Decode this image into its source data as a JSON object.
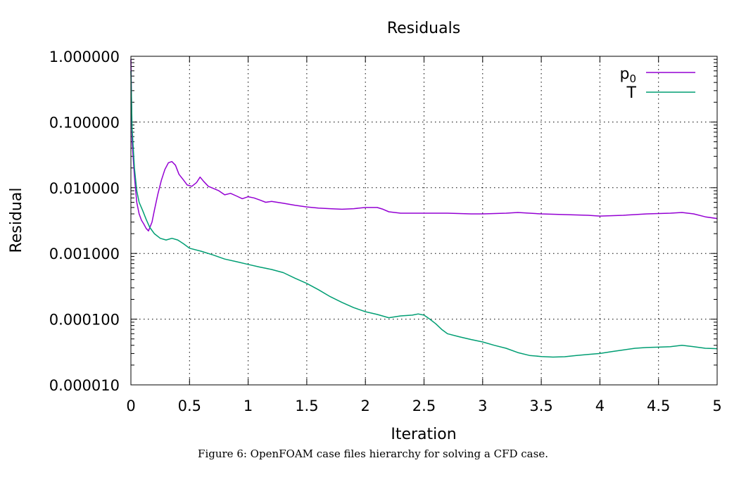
{
  "figure": {
    "caption": "Figure 6: OpenFOAM case files hierarchy for solving a CFD case."
  },
  "chart_data": {
    "type": "line",
    "title": "Residuals",
    "xlabel": "Iteration",
    "ylabel": "Residual",
    "xlim": [
      0,
      5
    ],
    "ylim": [
      1e-05,
      1
    ],
    "yscale": "log",
    "grid": true,
    "legend_position": "top-right",
    "x_ticks": [
      "0",
      "0.5",
      "1",
      "1.5",
      "2",
      "2.5",
      "3",
      "3.5",
      "4",
      "4.5",
      "5"
    ],
    "y_ticks": [
      "1.000000",
      "0.100000",
      "0.010000",
      "0.001000",
      "0.000100",
      "0.000010"
    ],
    "series": [
      {
        "name": "p",
        "name_subscript": "0",
        "color": "#9400d3",
        "points": [
          [
            0,
            0.9
          ],
          [
            0.01,
            0.05
          ],
          [
            0.03,
            0.015
          ],
          [
            0.05,
            0.006
          ],
          [
            0.07,
            0.004
          ],
          [
            0.09,
            0.0032
          ],
          [
            0.11,
            0.0028
          ],
          [
            0.13,
            0.0024
          ],
          [
            0.15,
            0.0022
          ],
          [
            0.18,
            0.003
          ],
          [
            0.2,
            0.0045
          ],
          [
            0.23,
            0.008
          ],
          [
            0.26,
            0.013
          ],
          [
            0.29,
            0.019
          ],
          [
            0.32,
            0.024
          ],
          [
            0.35,
            0.025
          ],
          [
            0.38,
            0.022
          ],
          [
            0.41,
            0.016
          ],
          [
            0.45,
            0.013
          ],
          [
            0.48,
            0.011
          ],
          [
            0.52,
            0.0105
          ],
          [
            0.56,
            0.012
          ],
          [
            0.59,
            0.0145
          ],
          [
            0.62,
            0.0125
          ],
          [
            0.66,
            0.0105
          ],
          [
            0.7,
            0.0098
          ],
          [
            0.75,
            0.009
          ],
          [
            0.8,
            0.0078
          ],
          [
            0.85,
            0.0082
          ],
          [
            0.9,
            0.0075
          ],
          [
            0.95,
            0.0068
          ],
          [
            1.0,
            0.0073
          ],
          [
            1.05,
            0.007
          ],
          [
            1.1,
            0.0065
          ],
          [
            1.15,
            0.006
          ],
          [
            1.2,
            0.0062
          ],
          [
            1.3,
            0.0058
          ],
          [
            1.4,
            0.0054
          ],
          [
            1.5,
            0.0051
          ],
          [
            1.6,
            0.0049
          ],
          [
            1.7,
            0.0048
          ],
          [
            1.8,
            0.0047
          ],
          [
            1.9,
            0.0048
          ],
          [
            2.0,
            0.005
          ],
          [
            2.1,
            0.005
          ],
          [
            2.15,
            0.0047
          ],
          [
            2.2,
            0.0043
          ],
          [
            2.3,
            0.0041
          ],
          [
            2.5,
            0.0041
          ],
          [
            2.7,
            0.0041
          ],
          [
            2.9,
            0.004
          ],
          [
            3.0,
            0.004
          ],
          [
            3.2,
            0.0041
          ],
          [
            3.3,
            0.0042
          ],
          [
            3.5,
            0.004
          ],
          [
            3.7,
            0.0039
          ],
          [
            3.9,
            0.0038
          ],
          [
            4.0,
            0.0037
          ],
          [
            4.2,
            0.0038
          ],
          [
            4.4,
            0.004
          ],
          [
            4.6,
            0.0041
          ],
          [
            4.7,
            0.0042
          ],
          [
            4.8,
            0.004
          ],
          [
            4.9,
            0.0036
          ],
          [
            5.0,
            0.0034
          ]
        ]
      },
      {
        "name": "T",
        "name_subscript": "",
        "color": "#009e73",
        "points": [
          [
            0,
            0.6
          ],
          [
            0.01,
            0.08
          ],
          [
            0.03,
            0.02
          ],
          [
            0.05,
            0.009
          ],
          [
            0.07,
            0.006
          ],
          [
            0.1,
            0.0045
          ],
          [
            0.13,
            0.0033
          ],
          [
            0.16,
            0.0025
          ],
          [
            0.2,
            0.002
          ],
          [
            0.25,
            0.0017
          ],
          [
            0.3,
            0.0016
          ],
          [
            0.35,
            0.0017
          ],
          [
            0.4,
            0.0016
          ],
          [
            0.45,
            0.0014
          ],
          [
            0.5,
            0.0012
          ],
          [
            0.6,
            0.00108
          ],
          [
            0.7,
            0.00095
          ],
          [
            0.8,
            0.00082
          ],
          [
            0.9,
            0.00075
          ],
          [
            1.0,
            0.00068
          ],
          [
            1.1,
            0.00062
          ],
          [
            1.2,
            0.00057
          ],
          [
            1.3,
            0.00051
          ],
          [
            1.4,
            0.00042
          ],
          [
            1.5,
            0.00035
          ],
          [
            1.6,
            0.00028
          ],
          [
            1.7,
            0.00022
          ],
          [
            1.8,
            0.00018
          ],
          [
            1.9,
            0.00015
          ],
          [
            2.0,
            0.00013
          ],
          [
            2.1,
            0.000118
          ],
          [
            2.2,
            0.000105
          ],
          [
            2.3,
            0.000112
          ],
          [
            2.4,
            0.000115
          ],
          [
            2.45,
            0.00012
          ],
          [
            2.5,
            0.000115
          ],
          [
            2.55,
            0.0001
          ],
          [
            2.6,
            8.5e-05
          ],
          [
            2.65,
            7e-05
          ],
          [
            2.7,
            6e-05
          ],
          [
            2.8,
            5.4e-05
          ],
          [
            2.9,
            4.9e-05
          ],
          [
            3.0,
            4.5e-05
          ],
          [
            3.1,
            4e-05
          ],
          [
            3.2,
            3.6e-05
          ],
          [
            3.3,
            3.1e-05
          ],
          [
            3.4,
            2.8e-05
          ],
          [
            3.5,
            2.7e-05
          ],
          [
            3.6,
            2.65e-05
          ],
          [
            3.7,
            2.68e-05
          ],
          [
            3.8,
            2.8e-05
          ],
          [
            3.9,
            2.9e-05
          ],
          [
            4.0,
            3e-05
          ],
          [
            4.1,
            3.2e-05
          ],
          [
            4.2,
            3.4e-05
          ],
          [
            4.3,
            3.6e-05
          ],
          [
            4.4,
            3.7e-05
          ],
          [
            4.5,
            3.75e-05
          ],
          [
            4.6,
            3.8e-05
          ],
          [
            4.7,
            4e-05
          ],
          [
            4.8,
            3.8e-05
          ],
          [
            4.9,
            3.6e-05
          ],
          [
            5.0,
            3.55e-05
          ]
        ]
      }
    ]
  }
}
